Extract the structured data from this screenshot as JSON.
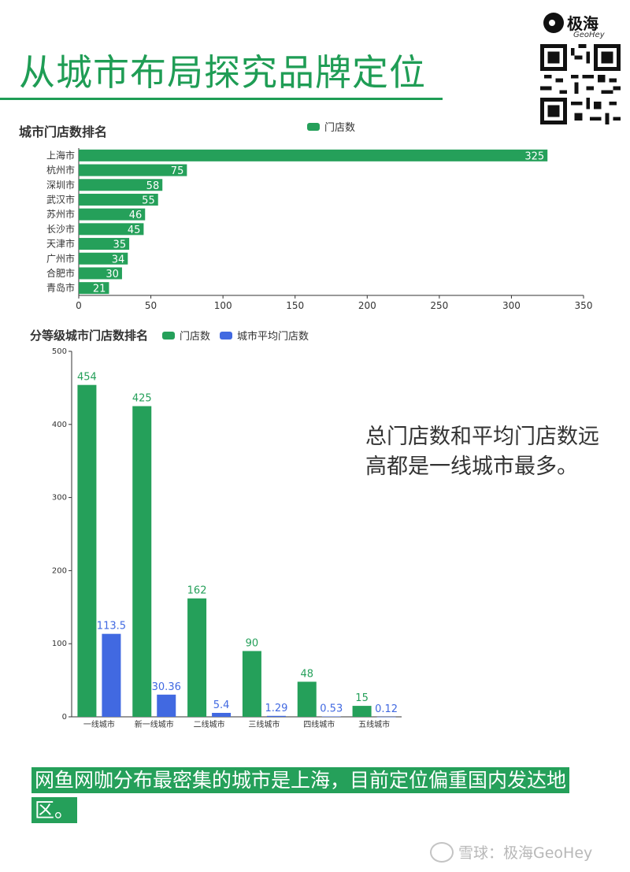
{
  "header": {
    "title": "从城市布局探究品牌定位",
    "logo_cn": "极海",
    "logo_en": "GeoHey"
  },
  "colors": {
    "green": "#25a05a",
    "blue": "#4169e1"
  },
  "chart_data": [
    {
      "type": "bar",
      "orientation": "horizontal",
      "title": "城市门店数排名",
      "legend": [
        "门店数"
      ],
      "legend_position": "top",
      "categories": [
        "上海市",
        "杭州市",
        "深圳市",
        "武汉市",
        "苏州市",
        "长沙市",
        "天津市",
        "广州市",
        "合肥市",
        "青岛市"
      ],
      "series": [
        {
          "name": "门店数",
          "color": "#25a05a",
          "values": [
            325,
            75,
            58,
            55,
            46,
            45,
            35,
            34,
            30,
            21
          ]
        }
      ],
      "xlim": [
        0,
        350
      ],
      "xticks": [
        0,
        50,
        100,
        150,
        200,
        250,
        300,
        350
      ],
      "grid": false
    },
    {
      "type": "bar",
      "orientation": "vertical",
      "title": "分等级城市门店数排名",
      "legend": [
        "门店数",
        "城市平均门店数"
      ],
      "legend_position": "top",
      "categories": [
        "一线城市",
        "新一线城市",
        "二线城市",
        "三线城市",
        "四线城市",
        "五线城市"
      ],
      "series": [
        {
          "name": "门店数",
          "color": "#25a05a",
          "values": [
            454,
            425,
            162,
            90,
            48,
            15
          ]
        },
        {
          "name": "城市平均门店数",
          "color": "#4169e1",
          "values": [
            113.5,
            30.36,
            5.4,
            1.29,
            0.53,
            0.12
          ]
        }
      ],
      "ylim": [
        0,
        500
      ],
      "yticks": [
        0,
        100,
        200,
        300,
        400,
        500
      ],
      "grid": false
    }
  ],
  "side_note": "总门店数和平均门店数远高都是一线城市最多。",
  "banner": "网鱼网咖分布最密集的城市是上海，目前定位偏重国内发达地区。",
  "watermark": "雪球：极海GeoHey"
}
